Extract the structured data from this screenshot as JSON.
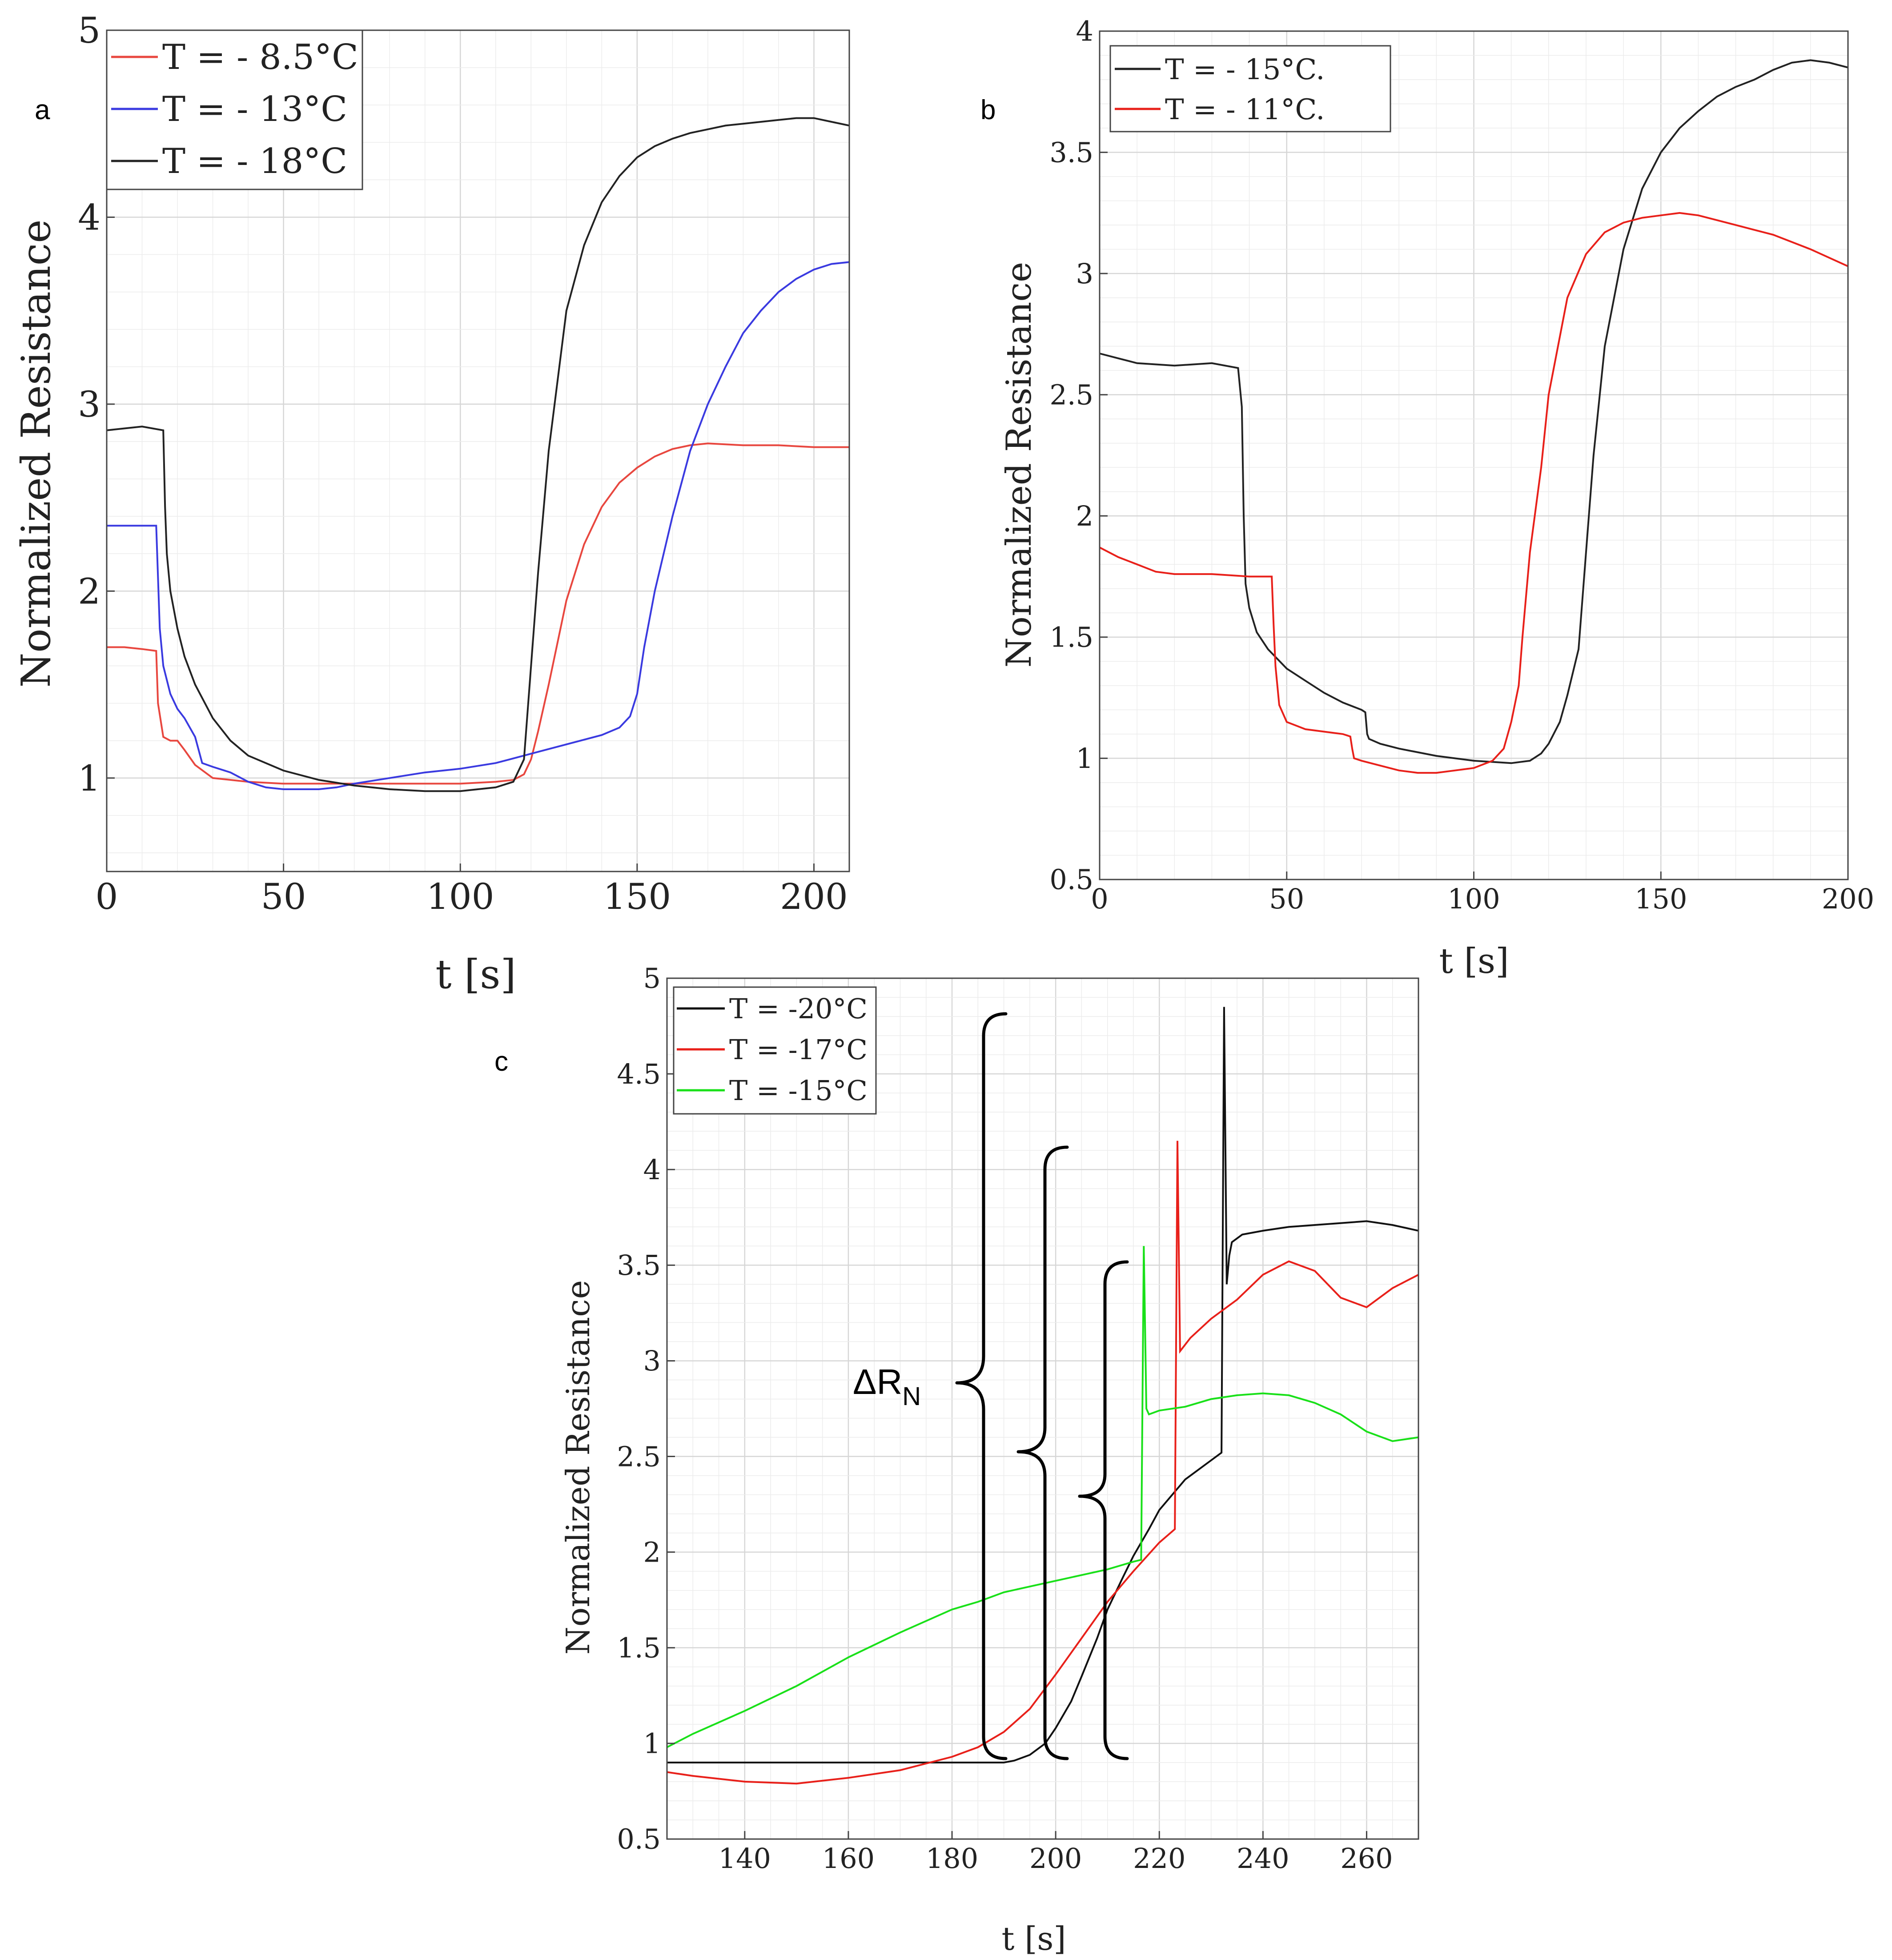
{
  "chart_data": [
    {
      "panel_label": "a",
      "type": "line",
      "xlabel": "t [s]",
      "ylabel": "Normalized Resistance",
      "xlim": [
        0,
        210
      ],
      "ylim": [
        0.5,
        5
      ],
      "xticks": [
        0,
        50,
        100,
        150,
        200
      ],
      "yticks": [
        1,
        2,
        3,
        4,
        5
      ],
      "grid": true,
      "legend": "top-left",
      "series": [
        {
          "name": "T = - 8.5°C",
          "color": "#e8473f",
          "x": [
            0,
            5,
            10,
            14,
            14.5,
            16,
            18,
            20,
            22,
            25,
            30,
            40,
            50,
            60,
            70,
            80,
            90,
            100,
            110,
            115,
            118,
            120,
            122,
            125,
            130,
            135,
            140,
            145,
            150,
            155,
            160,
            165,
            170,
            180,
            190,
            200,
            210
          ],
          "y": [
            1.7,
            1.7,
            1.69,
            1.68,
            1.4,
            1.22,
            1.2,
            1.2,
            1.15,
            1.07,
            1.0,
            0.98,
            0.97,
            0.97,
            0.97,
            0.97,
            0.97,
            0.97,
            0.98,
            0.99,
            1.02,
            1.1,
            1.25,
            1.5,
            1.95,
            2.25,
            2.45,
            2.58,
            2.66,
            2.72,
            2.76,
            2.78,
            2.79,
            2.78,
            2.78,
            2.77,
            2.77
          ]
        },
        {
          "name": "T = - 13°C",
          "color": "#3a3ae0",
          "x": [
            0,
            5,
            10,
            14,
            15,
            16,
            18,
            20,
            22,
            25,
            27,
            30,
            35,
            40,
            45,
            50,
            55,
            60,
            65,
            70,
            80,
            90,
            100,
            110,
            120,
            130,
            140,
            145,
            148,
            150,
            152,
            155,
            160,
            165,
            170,
            175,
            180,
            185,
            190,
            195,
            200,
            205,
            210
          ],
          "y": [
            2.35,
            2.35,
            2.35,
            2.35,
            1.8,
            1.6,
            1.45,
            1.37,
            1.32,
            1.22,
            1.08,
            1.06,
            1.03,
            0.98,
            0.95,
            0.94,
            0.94,
            0.94,
            0.95,
            0.97,
            1.0,
            1.03,
            1.05,
            1.08,
            1.13,
            1.18,
            1.23,
            1.27,
            1.33,
            1.45,
            1.7,
            2.0,
            2.4,
            2.75,
            3.0,
            3.2,
            3.38,
            3.5,
            3.6,
            3.67,
            3.72,
            3.75,
            3.76
          ]
        },
        {
          "name": "T = - 18°C",
          "color": "#222222",
          "x": [
            0,
            5,
            10,
            16,
            16.5,
            17,
            18,
            20,
            22,
            25,
            30,
            35,
            40,
            50,
            60,
            70,
            80,
            90,
            100,
            110,
            115,
            118,
            120,
            122,
            125,
            128,
            130,
            135,
            140,
            145,
            150,
            155,
            160,
            165,
            170,
            175,
            180,
            185,
            190,
            195,
            200,
            205,
            210
          ],
          "y": [
            2.86,
            2.87,
            2.88,
            2.86,
            2.45,
            2.2,
            2.0,
            1.8,
            1.65,
            1.5,
            1.32,
            1.2,
            1.12,
            1.04,
            0.99,
            0.96,
            0.94,
            0.93,
            0.93,
            0.95,
            0.98,
            1.1,
            1.6,
            2.1,
            2.75,
            3.2,
            3.5,
            3.85,
            4.08,
            4.22,
            4.32,
            4.38,
            4.42,
            4.45,
            4.47,
            4.49,
            4.5,
            4.51,
            4.52,
            4.53,
            4.53,
            4.51,
            4.49
          ]
        }
      ]
    },
    {
      "panel_label": "b",
      "type": "line",
      "xlabel": "t [s]",
      "ylabel": "Normalized Resistance",
      "xlim": [
        0,
        200
      ],
      "ylim": [
        0.5,
        4
      ],
      "xticks": [
        0,
        50,
        100,
        150,
        200
      ],
      "yticks": [
        0.5,
        1,
        1.5,
        2,
        2.5,
        3,
        3.5,
        4
      ],
      "grid": true,
      "legend": "top-left",
      "series": [
        {
          "name": "T = - 15°C.",
          "color": "#222222",
          "x": [
            0,
            5,
            10,
            20,
            30,
            37,
            38,
            38.5,
            39,
            40,
            42,
            45,
            50,
            55,
            60,
            65,
            70,
            71,
            71.5,
            72,
            75,
            80,
            90,
            100,
            110,
            115,
            118,
            120,
            123,
            125,
            128,
            129,
            130,
            132,
            135,
            140,
            145,
            150,
            155,
            160,
            165,
            170,
            175,
            180,
            185,
            190,
            195,
            200
          ],
          "y": [
            2.67,
            2.65,
            2.63,
            2.62,
            2.63,
            2.61,
            2.45,
            2.0,
            1.72,
            1.62,
            1.52,
            1.45,
            1.37,
            1.32,
            1.27,
            1.23,
            1.2,
            1.19,
            1.1,
            1.08,
            1.06,
            1.04,
            1.01,
            0.99,
            0.98,
            0.99,
            1.02,
            1.06,
            1.15,
            1.26,
            1.45,
            1.65,
            1.85,
            2.25,
            2.7,
            3.1,
            3.35,
            3.5,
            3.6,
            3.67,
            3.73,
            3.77,
            3.8,
            3.84,
            3.87,
            3.88,
            3.87,
            3.85
          ]
        },
        {
          "name": "T = - 11°C.",
          "color": "#e8201a",
          "x": [
            0,
            5,
            10,
            15,
            20,
            30,
            40,
            46,
            46.5,
            47,
            48,
            50,
            55,
            60,
            65,
            67,
            67.5,
            68,
            70,
            75,
            80,
            85,
            90,
            95,
            100,
            105,
            108,
            110,
            112,
            113,
            115,
            118,
            120,
            125,
            130,
            135,
            140,
            145,
            150,
            155,
            160,
            165,
            170,
            180,
            190,
            200
          ],
          "y": [
            1.87,
            1.83,
            1.8,
            1.77,
            1.76,
            1.76,
            1.75,
            1.75,
            1.55,
            1.38,
            1.22,
            1.15,
            1.12,
            1.11,
            1.1,
            1.09,
            1.04,
            1.0,
            0.99,
            0.97,
            0.95,
            0.94,
            0.94,
            0.95,
            0.96,
            0.99,
            1.04,
            1.15,
            1.3,
            1.5,
            1.85,
            2.2,
            2.5,
            2.9,
            3.08,
            3.17,
            3.21,
            3.23,
            3.24,
            3.25,
            3.24,
            3.22,
            3.2,
            3.16,
            3.1,
            3.03
          ]
        }
      ]
    },
    {
      "panel_label": "c",
      "type": "line",
      "xlabel": "t [s]",
      "ylabel": "Normalized Resistance",
      "xlim": [
        125,
        270
      ],
      "ylim": [
        0.5,
        5
      ],
      "xticks": [
        140,
        160,
        180,
        200,
        220,
        240,
        260
      ],
      "yticks": [
        0.5,
        1,
        1.5,
        2,
        2.5,
        3,
        3.5,
        4,
        4.5,
        5
      ],
      "grid": true,
      "legend": "top-left",
      "annotations": [
        "ΔR",
        "N"
      ],
      "series": [
        {
          "name": "T = -20°C",
          "color": "#111111",
          "x": [
            125,
            140,
            160,
            180,
            190,
            192,
            195,
            198,
            200,
            203,
            205,
            208,
            210,
            213,
            215,
            218,
            220,
            225,
            230,
            232,
            232.5,
            233,
            233.5,
            234,
            236,
            240,
            245,
            250,
            255,
            260,
            265,
            270
          ],
          "y": [
            0.9,
            0.9,
            0.9,
            0.9,
            0.9,
            0.91,
            0.94,
            1.0,
            1.08,
            1.22,
            1.35,
            1.55,
            1.7,
            1.87,
            1.98,
            2.12,
            2.22,
            2.38,
            2.48,
            2.52,
            4.85,
            3.4,
            3.55,
            3.62,
            3.66,
            3.68,
            3.7,
            3.71,
            3.72,
            3.73,
            3.71,
            3.68
          ]
        },
        {
          "name": "T = -17°C",
          "color": "#e8201a",
          "x": [
            125,
            130,
            140,
            150,
            160,
            170,
            180,
            185,
            190,
            195,
            200,
            205,
            210,
            215,
            220,
            223,
            223.5,
            224,
            226,
            230,
            235,
            240,
            245,
            250,
            255,
            260,
            265,
            270
          ],
          "y": [
            0.85,
            0.83,
            0.8,
            0.79,
            0.82,
            0.86,
            0.93,
            0.98,
            1.06,
            1.18,
            1.36,
            1.55,
            1.74,
            1.9,
            2.05,
            2.12,
            4.15,
            3.05,
            3.12,
            3.22,
            3.32,
            3.45,
            3.52,
            3.47,
            3.33,
            3.28,
            3.38,
            3.45
          ]
        },
        {
          "name": "T = -15°C",
          "color": "#19e019",
          "x": [
            125,
            130,
            140,
            150,
            160,
            170,
            180,
            185,
            190,
            195,
            200,
            205,
            210,
            215,
            216.5,
            217,
            217.5,
            218,
            220,
            225,
            230,
            235,
            240,
            245,
            250,
            255,
            260,
            265,
            270
          ],
          "y": [
            0.98,
            1.05,
            1.17,
            1.3,
            1.45,
            1.58,
            1.7,
            1.74,
            1.79,
            1.82,
            1.85,
            1.88,
            1.91,
            1.95,
            1.96,
            3.6,
            2.75,
            2.72,
            2.74,
            2.76,
            2.8,
            2.82,
            2.83,
            2.82,
            2.78,
            2.72,
            2.63,
            2.58,
            2.6
          ]
        }
      ]
    }
  ]
}
